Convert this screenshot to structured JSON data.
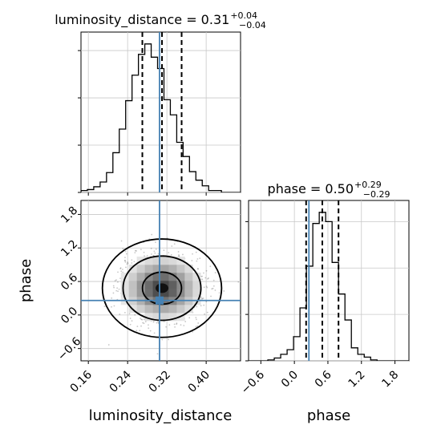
{
  "chart_data": [
    {
      "type": "histogram",
      "panel": "top-left",
      "parameter": "luminosity_distance",
      "title": {
        "lhs": "luminosity_distance = 0.31",
        "sup": "+0.04",
        "sub": "−0.04"
      },
      "xlim": [
        0.145,
        0.47
      ],
      "bins": [
        0.145,
        0.158,
        0.171,
        0.184,
        0.197,
        0.21,
        0.223,
        0.236,
        0.249,
        0.262,
        0.275,
        0.288,
        0.301,
        0.314,
        0.327,
        0.34,
        0.353,
        0.366,
        0.379,
        0.392,
        0.405,
        0.418,
        0.431,
        0.444,
        0.457,
        0.47
      ],
      "counts": [
        2,
        3,
        6,
        11,
        21,
        42,
        67,
        97,
        124,
        146,
        157,
        143,
        131,
        98,
        82,
        53,
        38,
        22,
        13,
        7,
        2,
        2,
        0,
        0,
        0
      ],
      "quantiles": [
        0.27,
        0.31,
        0.35
      ],
      "truth": 0.305,
      "grid": true
    },
    {
      "type": "contour-density",
      "panel": "bottom-left",
      "xlabel": "luminosity_distance",
      "ylabel": "phase",
      "xlim": [
        0.145,
        0.47
      ],
      "ylim": [
        -0.82,
        2.05
      ],
      "xticks": [
        "0.16",
        "0.24",
        "0.32",
        "0.40"
      ],
      "yticks": [
        "−0.6",
        "0.0",
        "0.6",
        "1.2",
        "1.8"
      ],
      "center": [
        0.31,
        0.48
      ],
      "spread": [
        0.04,
        0.29
      ],
      "contour_levels": [
        0.39,
        0.86,
        0.99
      ],
      "truth": [
        0.305,
        0.26
      ],
      "grid": true
    },
    {
      "type": "histogram",
      "panel": "bottom-right",
      "parameter": "phase",
      "title": {
        "lhs": "phase = 0.50",
        "sup": "+0.29",
        "sub": "−0.29"
      },
      "xlabel": "phase",
      "xlim": [
        -0.82,
        2.05
      ],
      "xticks": [
        "−0.6",
        "0.0",
        "0.6",
        "1.2",
        "1.8"
      ],
      "bins": [
        -0.82,
        -0.705,
        -0.59,
        -0.475,
        -0.36,
        -0.245,
        -0.13,
        -0.015,
        0.1,
        0.215,
        0.33,
        0.445,
        0.56,
        0.675,
        0.79,
        0.905,
        1.02,
        1.135,
        1.25,
        1.365,
        1.48,
        1.595,
        1.71,
        1.825,
        1.94,
        2.05
      ],
      "counts": [
        0,
        0,
        0,
        1,
        3,
        7,
        12,
        26,
        57,
        102,
        148,
        160,
        150,
        106,
        72,
        44,
        14,
        7,
        4,
        1,
        0,
        0,
        0,
        0,
        0
      ],
      "quantiles": [
        0.21,
        0.5,
        0.79
      ],
      "truth": 0.26,
      "grid": true
    }
  ]
}
